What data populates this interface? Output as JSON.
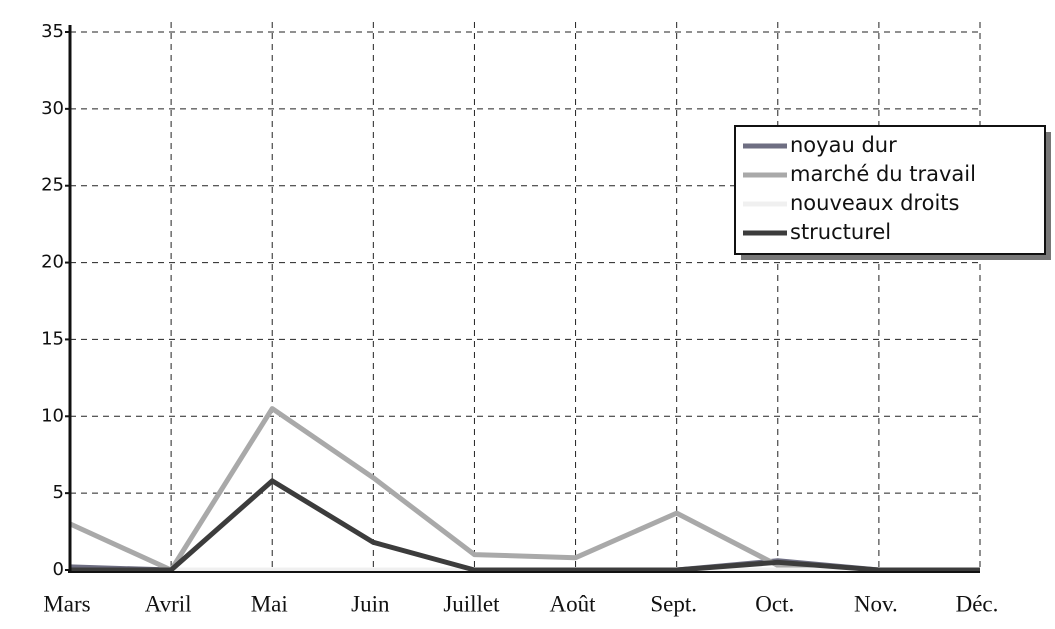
{
  "chart_data": {
    "type": "line",
    "categories": [
      "Mars",
      "Avril",
      "Mai",
      "Juin",
      "Juillet",
      "Août",
      "Sept.",
      "Oct.",
      "Nov.",
      "Déc."
    ],
    "series": [
      {
        "name": "noyau dur",
        "color": "#6e6e82",
        "values": [
          0.2,
          0,
          0,
          0,
          0,
          0,
          0,
          0.6,
          0,
          0
        ]
      },
      {
        "name": "marché du travail",
        "color": "#a9a9a9",
        "values": [
          3,
          0,
          10.5,
          6,
          1,
          0.8,
          3.7,
          0.3,
          0,
          0
        ]
      },
      {
        "name": "nouveaux droits",
        "color": "#f0f0f0",
        "values": [
          0,
          0,
          0,
          0,
          0,
          0,
          0,
          0,
          0,
          0
        ]
      },
      {
        "name": "structurel",
        "color": "#3c3c3c",
        "values": [
          0,
          0,
          5.8,
          1.8,
          0,
          0,
          0,
          0.5,
          0,
          0
        ]
      }
    ],
    "ylim": [
      0,
      35
    ],
    "yticks": [
      0,
      5,
      10,
      15,
      20,
      25,
      30,
      35
    ],
    "grid": true,
    "legend": "upper right"
  }
}
